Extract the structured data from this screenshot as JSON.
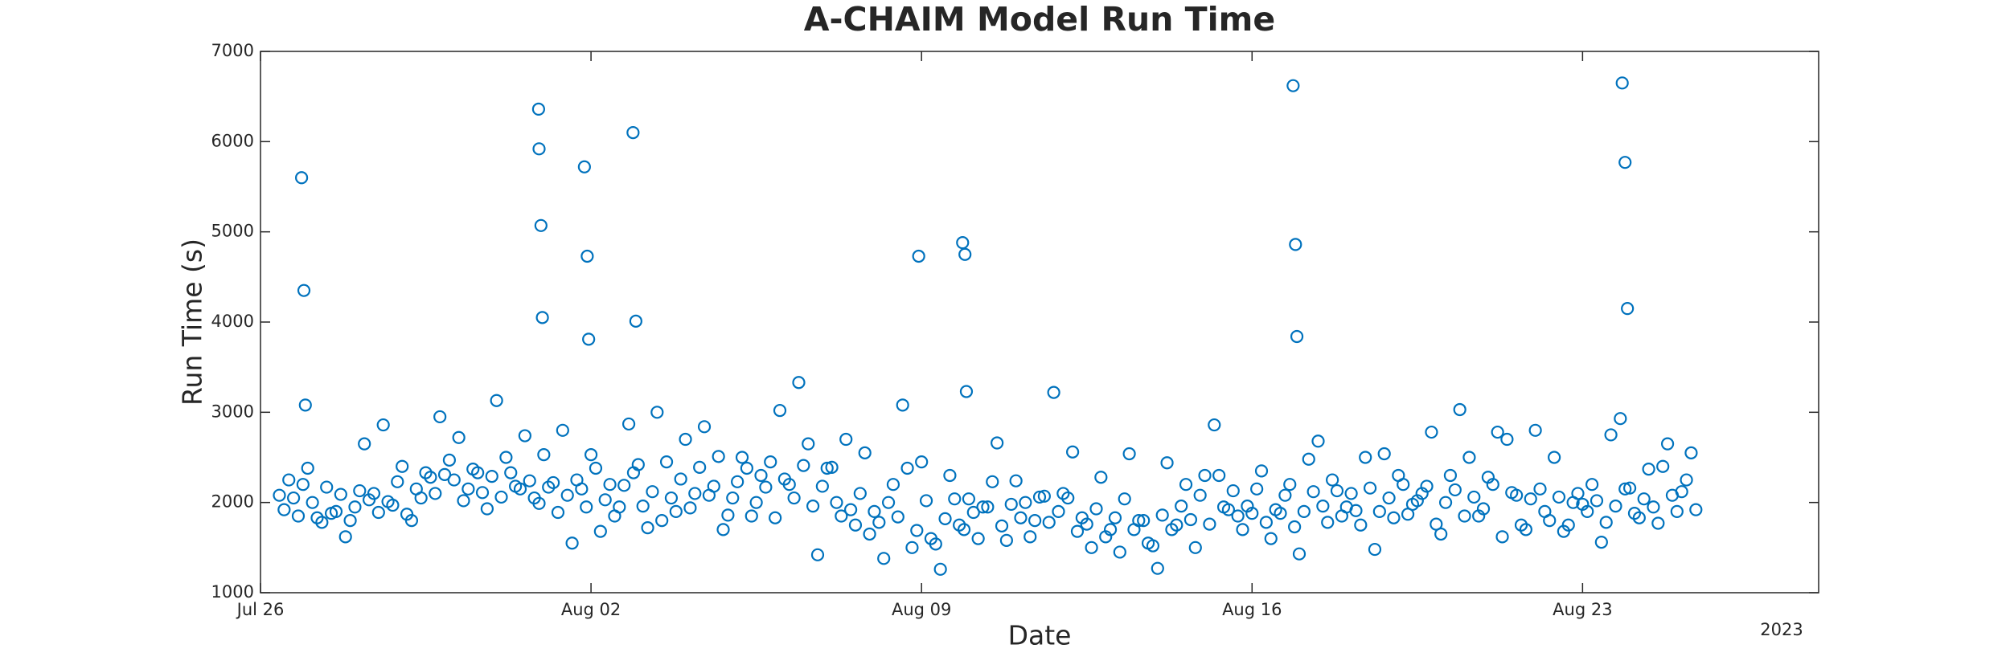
{
  "chart_data": {
    "type": "scatter",
    "title": "A-CHAIM Model Run Time",
    "xlabel": "Date",
    "ylabel": "Run Time (s)",
    "x_year_label": "2023",
    "color": "#0072BD",
    "xlim": [
      0,
      33
    ],
    "xticks": [
      {
        "value": 0,
        "label": "Jul 26"
      },
      {
        "value": 7,
        "label": "Aug 02"
      },
      {
        "value": 14,
        "label": "Aug 09"
      },
      {
        "value": 21,
        "label": "Aug 16"
      },
      {
        "value": 28,
        "label": "Aug 23"
      }
    ],
    "ylim": [
      1000,
      7000
    ],
    "yticks": [
      1000,
      2000,
      3000,
      4000,
      5000,
      6000,
      7000
    ],
    "grid": false,
    "x": [
      0.4,
      0.6,
      0.8,
      1.0,
      1.2,
      1.4,
      1.6,
      1.8,
      2.0,
      2.2,
      2.4,
      2.6,
      2.8,
      3.0,
      3.2,
      3.4,
      3.6,
      3.8,
      4.0,
      4.2,
      4.4,
      4.6,
      4.8,
      5.0,
      5.2,
      5.4,
      5.6,
      5.8,
      6.0,
      6.2,
      6.4,
      6.6,
      6.8,
      7.0,
      7.2,
      7.4,
      7.6,
      7.8,
      8.0,
      8.2,
      8.4,
      8.6,
      8.8,
      9.0,
      9.2,
      9.4,
      9.6,
      9.8,
      10.0,
      10.2,
      10.4,
      10.6,
      10.8,
      11.0,
      11.2,
      11.4,
      11.6,
      11.8,
      12.0,
      12.2,
      12.4,
      12.6,
      12.8,
      13.0,
      13.2,
      13.4,
      13.6,
      13.8,
      14.0,
      14.2,
      14.4,
      14.6,
      14.8,
      15.0,
      15.2,
      15.4,
      15.6,
      15.8,
      16.0,
      16.2,
      16.4,
      16.6,
      16.8,
      17.0,
      17.2,
      17.4,
      17.6,
      17.8,
      18.0,
      18.2,
      18.4,
      18.6,
      18.8,
      19.0,
      19.2,
      19.4,
      19.6,
      19.8,
      20.0,
      20.2,
      20.4,
      20.6,
      20.8,
      21.0,
      21.2,
      21.4,
      21.6,
      21.8,
      22.0,
      22.2,
      22.4,
      22.6,
      22.8,
      23.0,
      23.2,
      23.4,
      23.6,
      23.8,
      24.0,
      24.2,
      24.4,
      24.6,
      24.8,
      25.0,
      25.2,
      25.4,
      25.6,
      25.8,
      26.0,
      26.2,
      26.4,
      26.6,
      26.8,
      27.0,
      27.2,
      27.4,
      27.6,
      27.8,
      28.0,
      28.2,
      28.4,
      28.6,
      28.8,
      29.0,
      29.2,
      29.4,
      29.6,
      29.8,
      30.0,
      30.2,
      30.4,
      0.5,
      0.7,
      0.9,
      1.1,
      1.3,
      1.5,
      1.7,
      1.9,
      2.1,
      2.3,
      2.5,
      2.7,
      2.9,
      3.1,
      3.3,
      3.5,
      3.7,
      3.9,
      4.1,
      4.3,
      4.5,
      4.7,
      4.9,
      5.1,
      5.3,
      5.5,
      5.7,
      5.9,
      6.1,
      6.3,
      6.5,
      6.7,
      6.9,
      7.1,
      7.3,
      7.5,
      7.7,
      7.9,
      8.1,
      8.3,
      8.5,
      8.7,
      8.9,
      9.1,
      9.3,
      9.5,
      9.7,
      9.9,
      10.1,
      10.3,
      10.5,
      10.7,
      10.9,
      11.1,
      11.3,
      11.5,
      11.7,
      11.9,
      12.1,
      12.3,
      12.5,
      12.7,
      12.9,
      13.1,
      13.3,
      13.5,
      13.7,
      13.9,
      14.1,
      14.3,
      14.5,
      14.7,
      14.9,
      15.1,
      15.3,
      15.5,
      15.7,
      15.9,
      16.1,
      16.3,
      16.5,
      16.7,
      16.9,
      17.1,
      17.3,
      17.5,
      17.7,
      17.9,
      18.1,
      18.3,
      18.5,
      18.7,
      18.9,
      19.1,
      19.3,
      19.5,
      19.7,
      19.9,
      20.1,
      20.3,
      20.5,
      20.7,
      20.9,
      21.1,
      21.3,
      21.5,
      21.7,
      21.9,
      22.1,
      22.3,
      22.5,
      22.7,
      22.9,
      23.1,
      23.3,
      23.5,
      23.7,
      23.9,
      24.1,
      24.3,
      24.5,
      24.7,
      24.9,
      25.1,
      25.3,
      25.5,
      25.7,
      25.9,
      26.1,
      26.3,
      26.5,
      26.7,
      26.9,
      27.1,
      27.3,
      27.5,
      27.7,
      27.9,
      28.1,
      28.3,
      28.5,
      28.7,
      28.9,
      29.1,
      29.3,
      29.5,
      29.7,
      29.9,
      30.1,
      30.3,
      0.87,
      0.92,
      0.95,
      5.89,
      5.9,
      5.94,
      5.97,
      6.86,
      6.92,
      6.95,
      7.89,
      7.95,
      13.94,
      14.87,
      14.92,
      14.95,
      21.87,
      21.92,
      21.95,
      28.84,
      28.9,
      28.95
    ],
    "values": [
      2080,
      2250,
      1850,
      2380,
      1830,
      2170,
      1900,
      1620,
      1950,
      2650,
      2100,
      2860,
      1970,
      2400,
      1800,
      2050,
      2280,
      2950,
      2470,
      2720,
      2150,
      2330,
      1930,
      3130,
      2500,
      2180,
      2740,
      2050,
      2530,
      2220,
      2800,
      1550,
      2150,
      2530,
      1680,
      2200,
      1950,
      2870,
      2420,
      1720,
      3000,
      2450,
      1900,
      2700,
      2100,
      2840,
      2180,
      1700,
      2050,
      2500,
      1850,
      2300,
      2450,
      3020,
      2200,
      3330,
      2650,
      1420,
      2380,
      2000,
      2700,
      1750,
      2550,
      1900,
      1380,
      2200,
      3080,
      1500,
      2450,
      1600,
      1260,
      2300,
      1750,
      2040,
      1600,
      1950,
      2660,
      1580,
      2240,
      2000,
      1800,
      2070,
      3220,
      2100,
      2560,
      1830,
      1500,
      2280,
      1700,
      1450,
      2540,
      1800,
      1550,
      1270,
      2440,
      1750,
      2200,
      1500,
      2300,
      2860,
      1950,
      2130,
      1700,
      1880,
      2350,
      1600,
      1880,
      2200,
      1430,
      2480,
      2680,
      1780,
      2130,
      1950,
      1910,
      2500,
      1480,
      2540,
      1830,
      2200,
      1980,
      2100,
      2780,
      1650,
      2300,
      3030,
      2500,
      1850,
      2280,
      2780,
      2700,
      2080,
      1700,
      2800,
      1900,
      2500,
      1680,
      2000,
      1980,
      2200,
      1560,
      2750,
      2930,
      2160,
      1830,
      2370,
      1770,
      2650,
      1900,
      2250,
      1920,
      1920,
      2050,
      2200,
      2000,
      1780,
      1880,
      2090,
      1800,
      2130,
      2030,
      1890,
      2010,
      2230,
      1870,
      2150,
      2330,
      2100,
      2310,
      2250,
      2020,
      2370,
      2110,
      2290,
      2060,
      2330,
      2150,
      2240,
      1990,
      2170,
      1890,
      2080,
      2250,
      1950,
      2380,
      2030,
      1850,
      2190,
      2330,
      1960,
      2120,
      1800,
      2050,
      2260,
      1940,
      2390,
      2080,
      2510,
      1860,
      2230,
      2380,
      2000,
      2170,
      1830,
      2260,
      2050,
      2410,
      1960,
      2180,
      2390,
      1850,
      1920,
      2100,
      1650,
      1780,
      2000,
      1840,
      2380,
      1690,
      2020,
      1540,
      1820,
      2040,
      1700,
      1890,
      1950,
      2230,
      1740,
      1980,
      1830,
      1620,
      2060,
      1780,
      1900,
      2050,
      1680,
      1760,
      1930,
      1620,
      1830,
      2040,
      1700,
      1800,
      1520,
      1860,
      1700,
      1960,
      1810,
      2080,
      1760,
      2300,
      1920,
      1850,
      1960,
      2150,
      1780,
      1920,
      2080,
      1730,
      1900,
      2120,
      1960,
      2250,
      1850,
      2100,
      1750,
      2160,
      1900,
      2050,
      2300,
      1870,
      2020,
      2180,
      1760,
      2000,
      2140,
      1850,
      2060,
      1930,
      2200,
      1620,
      2110,
      1750,
      2040,
      2150,
      1800,
      2060,
      1750,
      2100,
      1900,
      2020,
      1780,
      1960,
      2150,
      1880,
      2040,
      1950,
      2400,
      2080,
      2120,
      2550,
      5600,
      4350,
      3080,
      6360,
      5920,
      5070,
      4050,
      5720,
      4730,
      3810,
      6100,
      4010,
      4730,
      4880,
      4750,
      3230,
      6620,
      4860,
      3840,
      6650,
      5770,
      4150
    ]
  }
}
